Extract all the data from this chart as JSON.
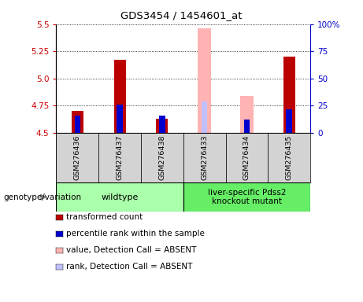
{
  "title": "GDS3454 / 1454601_at",
  "categories": [
    "GSM276436",
    "GSM276437",
    "GSM276438",
    "GSM276433",
    "GSM276434",
    "GSM276435"
  ],
  "ylim_left": [
    4.5,
    5.5
  ],
  "ylim_right": [
    0,
    100
  ],
  "yticks_left": [
    4.5,
    4.75,
    5.0,
    5.25,
    5.5
  ],
  "yticks_right": [
    0,
    25,
    50,
    75,
    100
  ],
  "ytick_labels_right": [
    "0",
    "25",
    "50",
    "75",
    "100%"
  ],
  "red_values": [
    4.7,
    5.17,
    4.63,
    0,
    0,
    5.2
  ],
  "blue_values": [
    4.66,
    4.76,
    4.66,
    0,
    4.62,
    4.72
  ],
  "pink_values": [
    0,
    0,
    0,
    5.46,
    4.84,
    0
  ],
  "lightblue_values": [
    0,
    0,
    0,
    4.79,
    4.62,
    0
  ],
  "bar_base": 4.5,
  "red_color": "#bb0000",
  "blue_color": "#0000cc",
  "pink_color": "#ffb3b3",
  "lightblue_color": "#c0c0ff",
  "group1_label": "wildtype",
  "group2_label": "liver-specific Pdss2\nknockout mutant",
  "group1_color": "#aaffaa",
  "group2_color": "#66ee66",
  "legend_items": [
    {
      "label": "transformed count",
      "color": "#bb0000"
    },
    {
      "label": "percentile rank within the sample",
      "color": "#0000cc"
    },
    {
      "label": "value, Detection Call = ABSENT",
      "color": "#ffb3b3"
    },
    {
      "label": "rank, Detection Call = ABSENT",
      "color": "#c0c0ff"
    }
  ],
  "annotation_label": "genotype/variation",
  "background_color": "#ffffff"
}
